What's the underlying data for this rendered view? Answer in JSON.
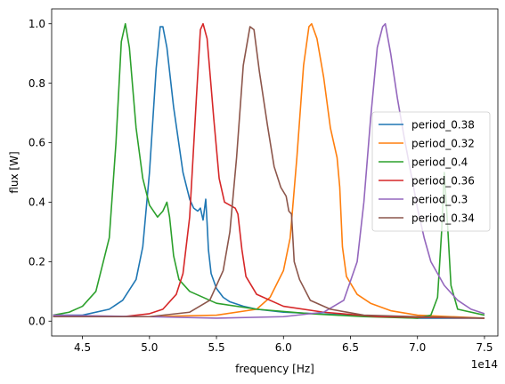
{
  "chart_data": {
    "type": "line",
    "xlabel": "frequency [Hz]",
    "ylabel": "flux [W]",
    "x_offset_label": "1e14",
    "xlim": [
      4.27,
      7.6
    ],
    "ylim": [
      -0.05,
      1.05
    ],
    "xticks": [
      4.5,
      5.0,
      5.5,
      6.0,
      6.5,
      7.0,
      7.5
    ],
    "xtick_labels": [
      "4.5",
      "5.0",
      "5.5",
      "6.0",
      "6.5",
      "7.0",
      "7.5"
    ],
    "yticks": [
      0.0,
      0.2,
      0.4,
      0.6,
      0.8,
      1.0
    ],
    "ytick_labels": [
      "0.0",
      "0.2",
      "0.4",
      "0.6",
      "0.8",
      "1.0"
    ],
    "grid": false,
    "legend_position": "center-right",
    "series": [
      {
        "name": "period_0.38",
        "color": "#1f77b4",
        "points": [
          [
            4.28,
            0.02
          ],
          [
            4.5,
            0.02
          ],
          [
            4.7,
            0.04
          ],
          [
            4.8,
            0.07
          ],
          [
            4.9,
            0.14
          ],
          [
            4.95,
            0.25
          ],
          [
            5.0,
            0.5
          ],
          [
            5.05,
            0.85
          ],
          [
            5.08,
            0.99
          ],
          [
            5.1,
            0.99
          ],
          [
            5.13,
            0.92
          ],
          [
            5.18,
            0.72
          ],
          [
            5.25,
            0.5
          ],
          [
            5.3,
            0.41
          ],
          [
            5.33,
            0.38
          ],
          [
            5.36,
            0.37
          ],
          [
            5.38,
            0.38
          ],
          [
            5.4,
            0.34
          ],
          [
            5.42,
            0.41
          ],
          [
            5.43,
            0.33
          ],
          [
            5.44,
            0.24
          ],
          [
            5.46,
            0.16
          ],
          [
            5.5,
            0.11
          ],
          [
            5.55,
            0.08
          ],
          [
            5.6,
            0.065
          ],
          [
            5.7,
            0.05
          ],
          [
            5.8,
            0.04
          ],
          [
            6.0,
            0.03
          ],
          [
            6.5,
            0.02
          ],
          [
            7.0,
            0.01
          ],
          [
            7.5,
            0.01
          ]
        ]
      },
      {
        "name": "period_0.32",
        "color": "#ff7f0e",
        "points": [
          [
            4.28,
            0.015
          ],
          [
            5.0,
            0.015
          ],
          [
            5.5,
            0.02
          ],
          [
            5.8,
            0.04
          ],
          [
            5.9,
            0.08
          ],
          [
            6.0,
            0.17
          ],
          [
            6.05,
            0.28
          ],
          [
            6.1,
            0.55
          ],
          [
            6.15,
            0.86
          ],
          [
            6.19,
            0.99
          ],
          [
            6.21,
            1.0
          ],
          [
            6.25,
            0.95
          ],
          [
            6.3,
            0.82
          ],
          [
            6.35,
            0.65
          ],
          [
            6.38,
            0.59
          ],
          [
            6.4,
            0.55
          ],
          [
            6.42,
            0.45
          ],
          [
            6.44,
            0.25
          ],
          [
            6.47,
            0.15
          ],
          [
            6.55,
            0.09
          ],
          [
            6.65,
            0.06
          ],
          [
            6.8,
            0.035
          ],
          [
            7.0,
            0.02
          ],
          [
            7.5,
            0.01
          ]
        ]
      },
      {
        "name": "period_0.4",
        "color": "#2ca02c",
        "points": [
          [
            4.28,
            0.02
          ],
          [
            4.4,
            0.03
          ],
          [
            4.5,
            0.05
          ],
          [
            4.6,
            0.1
          ],
          [
            4.7,
            0.28
          ],
          [
            4.75,
            0.6
          ],
          [
            4.79,
            0.94
          ],
          [
            4.82,
            1.0
          ],
          [
            4.85,
            0.92
          ],
          [
            4.9,
            0.65
          ],
          [
            4.95,
            0.48
          ],
          [
            5.0,
            0.39
          ],
          [
            5.03,
            0.37
          ],
          [
            5.06,
            0.35
          ],
          [
            5.1,
            0.37
          ],
          [
            5.13,
            0.4
          ],
          [
            5.15,
            0.35
          ],
          [
            5.18,
            0.22
          ],
          [
            5.22,
            0.14
          ],
          [
            5.3,
            0.1
          ],
          [
            5.5,
            0.06
          ],
          [
            5.8,
            0.04
          ],
          [
            6.2,
            0.025
          ],
          [
            6.6,
            0.015
          ],
          [
            7.0,
            0.01
          ],
          [
            7.1,
            0.02
          ],
          [
            7.15,
            0.08
          ],
          [
            7.18,
            0.3
          ],
          [
            7.2,
            0.5
          ],
          [
            7.22,
            0.36
          ],
          [
            7.25,
            0.12
          ],
          [
            7.3,
            0.04
          ],
          [
            7.5,
            0.02
          ]
        ]
      },
      {
        "name": "period_0.36",
        "color": "#d62728",
        "points": [
          [
            4.28,
            0.015
          ],
          [
            4.8,
            0.015
          ],
          [
            5.0,
            0.025
          ],
          [
            5.1,
            0.04
          ],
          [
            5.2,
            0.09
          ],
          [
            5.25,
            0.16
          ],
          [
            5.3,
            0.35
          ],
          [
            5.35,
            0.75
          ],
          [
            5.38,
            0.98
          ],
          [
            5.4,
            1.0
          ],
          [
            5.43,
            0.95
          ],
          [
            5.48,
            0.68
          ],
          [
            5.52,
            0.48
          ],
          [
            5.56,
            0.4
          ],
          [
            5.6,
            0.39
          ],
          [
            5.64,
            0.38
          ],
          [
            5.66,
            0.36
          ],
          [
            5.69,
            0.24
          ],
          [
            5.72,
            0.15
          ],
          [
            5.8,
            0.09
          ],
          [
            6.0,
            0.05
          ],
          [
            6.3,
            0.03
          ],
          [
            6.7,
            0.015
          ],
          [
            7.5,
            0.01
          ]
        ]
      },
      {
        "name": "period_0.3",
        "color": "#9467bd",
        "points": [
          [
            4.28,
            0.02
          ],
          [
            5.0,
            0.015
          ],
          [
            5.5,
            0.01
          ],
          [
            6.0,
            0.015
          ],
          [
            6.3,
            0.03
          ],
          [
            6.45,
            0.07
          ],
          [
            6.55,
            0.2
          ],
          [
            6.6,
            0.4
          ],
          [
            6.65,
            0.68
          ],
          [
            6.7,
            0.92
          ],
          [
            6.74,
            0.99
          ],
          [
            6.76,
            1.0
          ],
          [
            6.8,
            0.9
          ],
          [
            6.85,
            0.75
          ],
          [
            6.9,
            0.62
          ],
          [
            6.95,
            0.5
          ],
          [
            7.0,
            0.38
          ],
          [
            7.05,
            0.28
          ],
          [
            7.1,
            0.2
          ],
          [
            7.2,
            0.12
          ],
          [
            7.3,
            0.07
          ],
          [
            7.4,
            0.04
          ],
          [
            7.5,
            0.025
          ]
        ]
      },
      {
        "name": "period_0.34",
        "color": "#8c564b",
        "points": [
          [
            4.28,
            0.015
          ],
          [
            5.0,
            0.015
          ],
          [
            5.3,
            0.03
          ],
          [
            5.45,
            0.07
          ],
          [
            5.55,
            0.17
          ],
          [
            5.6,
            0.3
          ],
          [
            5.65,
            0.55
          ],
          [
            5.7,
            0.86
          ],
          [
            5.75,
            0.99
          ],
          [
            5.78,
            0.98
          ],
          [
            5.82,
            0.84
          ],
          [
            5.88,
            0.66
          ],
          [
            5.93,
            0.52
          ],
          [
            5.98,
            0.45
          ],
          [
            6.02,
            0.42
          ],
          [
            6.04,
            0.37
          ],
          [
            6.06,
            0.36
          ],
          [
            6.08,
            0.2
          ],
          [
            6.12,
            0.14
          ],
          [
            6.2,
            0.07
          ],
          [
            6.35,
            0.04
          ],
          [
            6.6,
            0.02
          ],
          [
            7.0,
            0.015
          ],
          [
            7.5,
            0.01
          ]
        ]
      }
    ]
  }
}
